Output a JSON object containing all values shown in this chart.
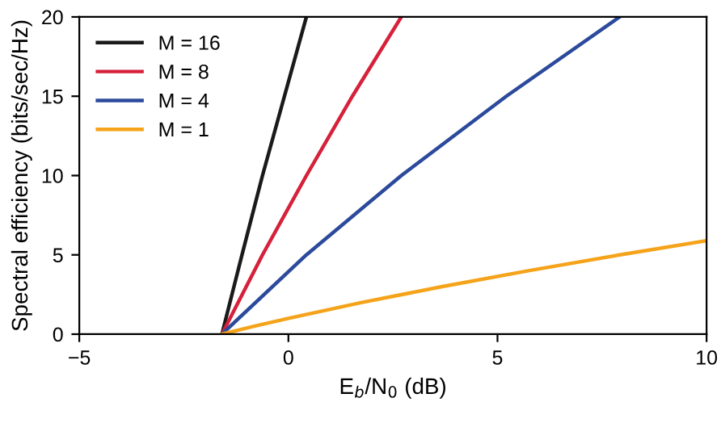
{
  "chart_data": {
    "type": "line",
    "xlabel": "E$_{b}$/N$_{0}$ (dB)",
    "ylabel": "Spectral efficiency (bits/sec/Hz)",
    "series": [
      {
        "name": "M = 16",
        "color": "#1a1a1a",
        "x": [
          -1.59,
          -1.11,
          -0.62,
          0.43
        ],
        "values": [
          0,
          5,
          10,
          20
        ]
      },
      {
        "name": "M = 8",
        "color": "#d6213a",
        "x": [
          -1.59,
          -0.62,
          0.43,
          1.53,
          2.7
        ],
        "values": [
          0,
          5,
          10,
          15,
          20
        ]
      },
      {
        "name": "M = 4",
        "color": "#2c4a9c",
        "x": [
          -1.59,
          0.43,
          2.7,
          5.21,
          7.92
        ],
        "values": [
          0,
          5,
          10,
          15,
          20
        ]
      },
      {
        "name": "M = 1",
        "color": "#f5a31a",
        "x": [
          -1.59,
          -0.82,
          0,
          1.76,
          3.68,
          5.74,
          7.92,
          10
        ],
        "values": [
          0,
          0.5,
          1,
          2,
          3,
          4,
          5,
          5.9
        ]
      }
    ],
    "xlim": [
      -5,
      10
    ],
    "ylim": [
      0,
      20
    ],
    "xticks": [
      {
        "value": -5,
        "label": "−5"
      },
      0,
      5,
      10
    ],
    "yticks": [
      0,
      5,
      10,
      15,
      20
    ],
    "grid": false,
    "legend": "top left",
    "marker": "none",
    "line_style": "solid"
  }
}
